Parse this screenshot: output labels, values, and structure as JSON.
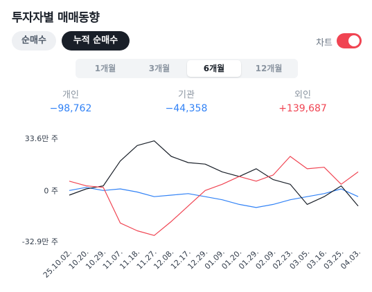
{
  "title": "투자자별 매매동향",
  "modes": [
    {
      "label": "순매수"
    },
    {
      "label": "누적 순매수"
    }
  ],
  "chart_toggle_label": "차트",
  "periods": [
    {
      "label": "1개월"
    },
    {
      "label": "3개월"
    },
    {
      "label": "6개월"
    },
    {
      "label": "12개월"
    }
  ],
  "active_period": "6개월",
  "stats": [
    {
      "label": "개인",
      "value": "−98,762"
    },
    {
      "label": "기관",
      "value": "−44,358"
    },
    {
      "label": "외인",
      "value": "+139,687"
    }
  ],
  "colors": {
    "individual": "#3182f6",
    "institution": "#191f28",
    "foreign": "#f04452"
  },
  "chart_data": {
    "type": "line",
    "y_ticks": [
      "33.6만 주",
      "0 주",
      "-32.9만 주"
    ],
    "ylim": [
      -32.9,
      33.6
    ],
    "x_ticks": [
      "25.10.02.",
      "10.20.",
      "10.29.",
      "11.07.",
      "11.18.",
      "11.27.",
      "12.08.",
      "12.17.",
      "12.29.",
      "01.09.",
      "01.20.",
      "01.29.",
      "02.09.",
      "02.23.",
      "03.05.",
      "03.16.",
      "03.25.",
      "04.03."
    ],
    "x": [
      0,
      1,
      2,
      3,
      4,
      5,
      6,
      7,
      8,
      9,
      10,
      11,
      12,
      13,
      14,
      15,
      16,
      17
    ],
    "series": [
      {
        "name": "개인",
        "values": [
          0,
          2,
          0,
          1,
          -1,
          -4,
          -3,
          -2,
          -4,
          -6,
          -9,
          -11,
          -9,
          -6,
          -4,
          -2,
          1,
          -4
        ]
      },
      {
        "name": "기관",
        "values": [
          -3,
          1,
          3,
          19,
          29,
          32,
          22,
          18,
          17,
          12,
          9,
          14,
          7,
          4,
          -9,
          -4,
          3,
          -10
        ]
      },
      {
        "name": "외인",
        "values": [
          6,
          3,
          2,
          -21,
          -26,
          -29,
          -20,
          -10,
          0,
          4,
          9,
          6,
          10,
          22,
          14,
          15,
          4,
          12
        ]
      }
    ]
  }
}
